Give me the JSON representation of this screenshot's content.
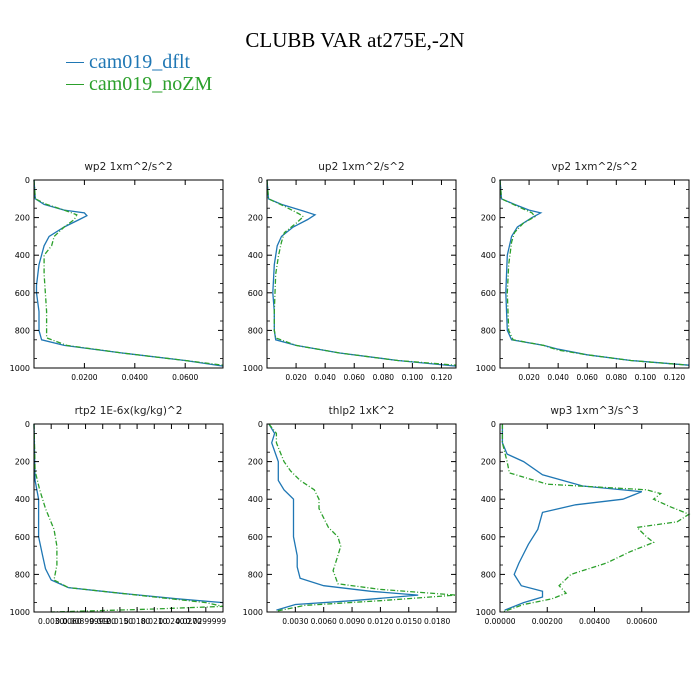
{
  "title": "CLUBB VAR at275E,-2N",
  "legend": [
    {
      "name": "cam019_dflt",
      "color": "#1f77b4"
    },
    {
      "name": "cam019_noZM",
      "color": "#2ca02c"
    }
  ],
  "chart_data": [
    {
      "type": "line",
      "title": "wp2   1xm^2/s^2",
      "xlim": [
        0,
        0.075
      ],
      "xticks": [
        0.02,
        0.04,
        0.06
      ],
      "xtick_labels": [
        "0.0200",
        "0.0400",
        "0.0600"
      ],
      "ylim": [
        1000,
        0
      ],
      "yticks": [
        0,
        200,
        400,
        600,
        800,
        1000
      ],
      "series": [
        {
          "name": "cam019_dflt",
          "points": [
            [
              0,
              0
            ],
            [
              0.0005,
              100
            ],
            [
              0.004,
              130
            ],
            [
              0.012,
              160
            ],
            [
              0.02,
              175
            ],
            [
              0.021,
              190
            ],
            [
              0.018,
              210
            ],
            [
              0.012,
              250
            ],
            [
              0.006,
              300
            ],
            [
              0.004,
              350
            ],
            [
              0.002,
              450
            ],
            [
              0.001,
              560
            ],
            [
              0.001,
              600
            ],
            [
              0.002,
              700
            ],
            [
              0.002,
              800
            ],
            [
              0.003,
              850
            ],
            [
              0.012,
              880
            ],
            [
              0.035,
              920
            ],
            [
              0.06,
              960
            ],
            [
              0.075,
              990
            ]
          ]
        },
        {
          "name": "cam019_noZM",
          "points": [
            [
              0,
              0
            ],
            [
              0.0005,
              100
            ],
            [
              0.005,
              130
            ],
            [
              0.012,
              160
            ],
            [
              0.017,
              185
            ],
            [
              0.016,
              210
            ],
            [
              0.012,
              250
            ],
            [
              0.008,
              300
            ],
            [
              0.007,
              350
            ],
            [
              0.004,
              400
            ],
            [
              0.004,
              500
            ],
            [
              0.005,
              700
            ],
            [
              0.005,
              800
            ],
            [
              0.005,
              840
            ],
            [
              0.013,
              880
            ],
            [
              0.035,
              920
            ],
            [
              0.06,
              960
            ],
            [
              0.075,
              985
            ]
          ]
        }
      ]
    },
    {
      "type": "line",
      "title": "up2   1xm^2/s^2",
      "xlim": [
        0,
        0.13
      ],
      "xticks": [
        0.02,
        0.04,
        0.06,
        0.08,
        0.1,
        0.12
      ],
      "xtick_labels": [
        "0.020",
        "0.040",
        "0.060",
        "0.080",
        "0.100",
        "0.120"
      ],
      "ylim": [
        1000,
        0
      ],
      "yticks": [
        0,
        200,
        400,
        600,
        800,
        1000
      ],
      "series": [
        {
          "name": "cam019_dflt",
          "points": [
            [
              0,
              0
            ],
            [
              0.001,
              100
            ],
            [
              0.01,
              130
            ],
            [
              0.025,
              165
            ],
            [
              0.033,
              185
            ],
            [
              0.028,
              210
            ],
            [
              0.018,
              250
            ],
            [
              0.01,
              300
            ],
            [
              0.007,
              350
            ],
            [
              0.005,
              450
            ],
            [
              0.004,
              600
            ],
            [
              0.005,
              700
            ],
            [
              0.005,
              800
            ],
            [
              0.006,
              850
            ],
            [
              0.02,
              880
            ],
            [
              0.05,
              920
            ],
            [
              0.09,
              960
            ],
            [
              0.13,
              990
            ]
          ]
        },
        {
          "name": "cam019_noZM",
          "points": [
            [
              0,
              0
            ],
            [
              0.001,
              100
            ],
            [
              0.012,
              140
            ],
            [
              0.022,
              180
            ],
            [
              0.025,
              195
            ],
            [
              0.02,
              230
            ],
            [
              0.012,
              280
            ],
            [
              0.01,
              330
            ],
            [
              0.008,
              400
            ],
            [
              0.006,
              500
            ],
            [
              0.005,
              700
            ],
            [
              0.005,
              800
            ],
            [
              0.006,
              840
            ],
            [
              0.02,
              880
            ],
            [
              0.05,
              920
            ],
            [
              0.09,
              960
            ],
            [
              0.13,
              985
            ]
          ]
        }
      ]
    },
    {
      "type": "line",
      "title": "vp2   1xm^2/s^2",
      "xlim": [
        0,
        0.13
      ],
      "xticks": [
        0.02,
        0.04,
        0.06,
        0.08,
        0.1,
        0.12
      ],
      "xtick_labels": [
        "0.020",
        "0.040",
        "0.060",
        "0.080",
        "0.100",
        "0.120"
      ],
      "ylim": [
        1000,
        0
      ],
      "yticks": [
        0,
        200,
        400,
        600,
        800,
        1000
      ],
      "series": [
        {
          "name": "cam019_dflt",
          "points": [
            [
              0,
              0
            ],
            [
              0.001,
              100
            ],
            [
              0.01,
              130
            ],
            [
              0.02,
              160
            ],
            [
              0.028,
              175
            ],
            [
              0.022,
              200
            ],
            [
              0.012,
              250
            ],
            [
              0.008,
              300
            ],
            [
              0.005,
              400
            ],
            [
              0.004,
              600
            ],
            [
              0.005,
              800
            ],
            [
              0.008,
              850
            ],
            [
              0.03,
              880
            ],
            [
              0.04,
              900
            ],
            [
              0.06,
              930
            ],
            [
              0.09,
              960
            ],
            [
              0.13,
              985
            ]
          ]
        },
        {
          "name": "cam019_noZM",
          "points": [
            [
              0,
              0
            ],
            [
              0.001,
              100
            ],
            [
              0.012,
              140
            ],
            [
              0.022,
              175
            ],
            [
              0.024,
              195
            ],
            [
              0.016,
              230
            ],
            [
              0.01,
              280
            ],
            [
              0.008,
              330
            ],
            [
              0.006,
              450
            ],
            [
              0.005,
              600
            ],
            [
              0.006,
              800
            ],
            [
              0.009,
              850
            ],
            [
              0.03,
              880
            ],
            [
              0.04,
              905
            ],
            [
              0.06,
              930
            ],
            [
              0.09,
              960
            ],
            [
              0.13,
              985
            ]
          ]
        }
      ]
    },
    {
      "type": "line",
      "title": "rtp2   1E-6x(kg/kg)^2",
      "xlim": [
        0,
        0.033
      ],
      "xticks": [
        0.003,
        0.006,
        0.009,
        0.012,
        0.015,
        0.018,
        0.021,
        0.024,
        0.027,
        0.03
      ],
      "xtick_labels": [
        "0.0030",
        "0.0060",
        "0.00899999",
        "0.0120",
        "0.0150",
        "0.0180",
        "0.0210",
        "0.0240",
        "0.0270",
        "0.0299999"
      ],
      "ylim": [
        1000,
        0
      ],
      "yticks": [
        0,
        200,
        400,
        600,
        800,
        1000
      ],
      "series": [
        {
          "name": "cam019_dflt",
          "points": [
            [
              0,
              0
            ],
            [
              0.0002,
              300
            ],
            [
              0.0008,
              400
            ],
            [
              0.0008,
              600
            ],
            [
              0.0015,
              700
            ],
            [
              0.002,
              770
            ],
            [
              0.003,
              830
            ],
            [
              0.006,
              870
            ],
            [
              0.015,
              900
            ],
            [
              0.025,
              930
            ],
            [
              0.033,
              950
            ]
          ]
        },
        {
          "name": "cam019_noZM",
          "points": [
            [
              0,
              0
            ],
            [
              0.0002,
              250
            ],
            [
              0.001,
              350
            ],
            [
              0.002,
              450
            ],
            [
              0.0035,
              560
            ],
            [
              0.004,
              650
            ],
            [
              0.004,
              750
            ],
            [
              0.0035,
              830
            ],
            [
              0.006,
              870
            ],
            [
              0.015,
              900
            ],
            [
              0.03,
              950
            ],
            [
              0.033,
              970
            ],
            [
              0.02,
              985
            ],
            [
              0.003,
              1000
            ]
          ]
        }
      ]
    },
    {
      "type": "line",
      "title": "thlp2   1xK^2",
      "xlim": [
        0,
        0.02
      ],
      "xticks": [
        0.003,
        0.006,
        0.009,
        0.012,
        0.015,
        0.018
      ],
      "xtick_labels": [
        "0.0030",
        "0.0060",
        "0.0090",
        "0.0120",
        "0.0150",
        "0.0180"
      ],
      "ylim": [
        1000,
        0
      ],
      "yticks": [
        0,
        200,
        400,
        600,
        800,
        1000
      ],
      "series": [
        {
          "name": "cam019_dflt",
          "points": [
            [
              0.0002,
              0
            ],
            [
              0.0008,
              50
            ],
            [
              0.0005,
              100
            ],
            [
              0.0012,
              200
            ],
            [
              0.0012,
              300
            ],
            [
              0.0018,
              350
            ],
            [
              0.0028,
              400
            ],
            [
              0.0028,
              500
            ],
            [
              0.0028,
              600
            ],
            [
              0.0032,
              700
            ],
            [
              0.0032,
              760
            ],
            [
              0.0035,
              820
            ],
            [
              0.006,
              860
            ],
            [
              0.011,
              890
            ],
            [
              0.016,
              910
            ],
            [
              0.009,
              940
            ],
            [
              0.003,
              960
            ],
            [
              0.001,
              990
            ]
          ]
        },
        {
          "name": "cam019_noZM",
          "points": [
            [
              0.0002,
              0
            ],
            [
              0.001,
              50
            ],
            [
              0.001,
              100
            ],
            [
              0.0018,
              200
            ],
            [
              0.0025,
              250
            ],
            [
              0.0035,
              300
            ],
            [
              0.005,
              350
            ],
            [
              0.0055,
              400
            ],
            [
              0.0055,
              450
            ],
            [
              0.006,
              500
            ],
            [
              0.0065,
              550
            ],
            [
              0.0075,
              600
            ],
            [
              0.0078,
              650
            ],
            [
              0.0075,
              700
            ],
            [
              0.007,
              780
            ],
            [
              0.0075,
              850
            ],
            [
              0.012,
              880
            ],
            [
              0.02,
              910
            ],
            [
              0.012,
              940
            ],
            [
              0.004,
              965
            ],
            [
              0.001,
              995
            ]
          ]
        }
      ]
    },
    {
      "type": "line",
      "title": "wp3   1xm^3/s^3",
      "xlim": [
        0,
        0.008
      ],
      "xticks": [
        0,
        0.002,
        0.004,
        0.006
      ],
      "xtick_labels": [
        "0.00000",
        "0.00200",
        "0.00400",
        "0.00600"
      ],
      "ylim": [
        1000,
        0
      ],
      "yticks": [
        0,
        200,
        400,
        600,
        800,
        1000
      ],
      "series": [
        {
          "name": "cam019_dflt",
          "points": [
            [
              0.0001,
              0
            ],
            [
              0.0001,
              100
            ],
            [
              0.0003,
              160
            ],
            [
              0.001,
              200
            ],
            [
              0.0018,
              270
            ],
            [
              0.0035,
              330
            ],
            [
              0.006,
              360
            ],
            [
              0.0052,
              400
            ],
            [
              0.0032,
              430
            ],
            [
              0.0018,
              470
            ],
            [
              0.0016,
              560
            ],
            [
              0.0012,
              640
            ],
            [
              0.0008,
              740
            ],
            [
              0.0006,
              800
            ],
            [
              0.0009,
              860
            ],
            [
              0.0018,
              890
            ],
            [
              0.0018,
              920
            ],
            [
              0.001,
              950
            ],
            [
              0.0002,
              990
            ]
          ]
        },
        {
          "name": "cam019_noZM",
          "points": [
            [
              0.0001,
              0
            ],
            [
              0.0001,
              100
            ],
            [
              0.0003,
              200
            ],
            [
              0.0004,
              260
            ],
            [
              0.002,
              320
            ],
            [
              0.0062,
              350
            ],
            [
              0.0068,
              370
            ],
            [
              0.0065,
              400
            ],
            [
              0.0072,
              440
            ],
            [
              0.008,
              480
            ],
            [
              0.0075,
              520
            ],
            [
              0.0058,
              550
            ],
            [
              0.0062,
              600
            ],
            [
              0.0065,
              630
            ],
            [
              0.0055,
              680
            ],
            [
              0.0045,
              740
            ],
            [
              0.003,
              800
            ],
            [
              0.0025,
              860
            ],
            [
              0.0028,
              900
            ],
            [
              0.0022,
              930
            ],
            [
              0.001,
              960
            ],
            [
              0.0001,
              1000
            ]
          ]
        }
      ]
    }
  ]
}
